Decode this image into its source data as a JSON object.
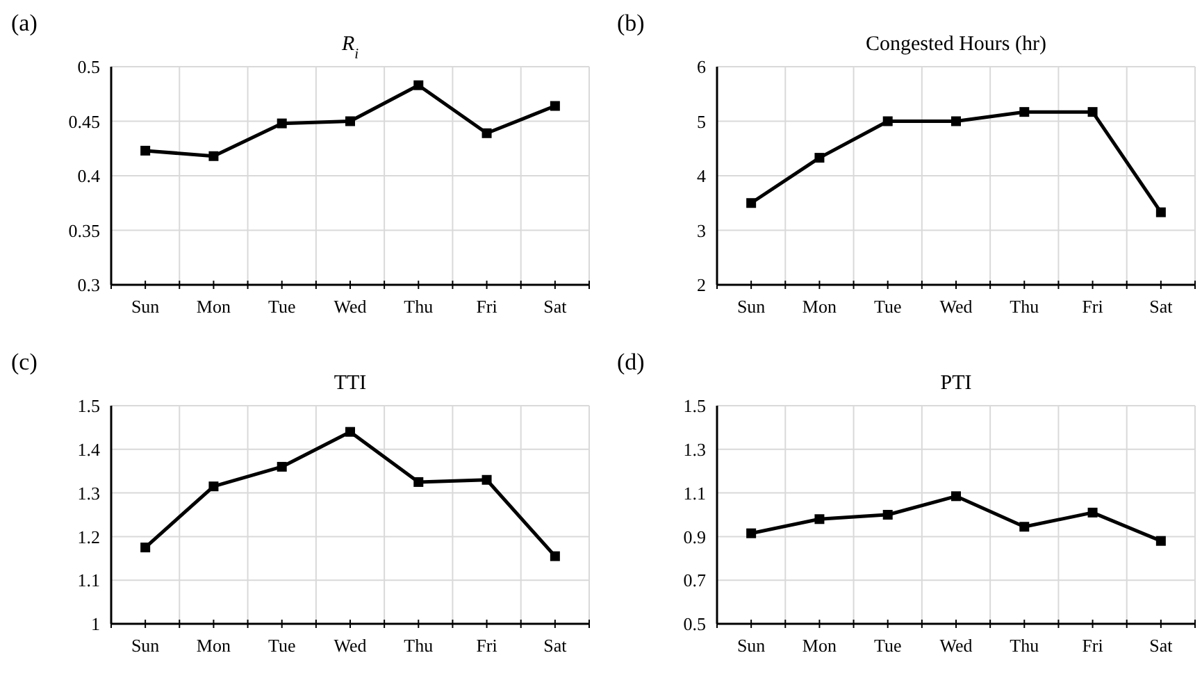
{
  "chart_data": [
    {
      "type": "line",
      "title": "R$_{i}$",
      "annotations": [
        "(a)"
      ],
      "categories": [
        "Sun",
        "Mon",
        "Tue",
        "Wed",
        "Thu",
        "Fri",
        "Sat"
      ],
      "series": [
        {
          "color": "#000000",
          "values": [
            0.423,
            0.418,
            0.448,
            0.45,
            0.483,
            0.439,
            0.464
          ]
        }
      ],
      "ylim": [
        0.3,
        0.5
      ],
      "yticks": [
        0.3,
        0.35,
        0.4,
        0.45,
        0.5
      ],
      "grid": true,
      "marker": "square",
      "line_style": "solid"
    },
    {
      "type": "line",
      "title": "Congested Hours (hr)",
      "annotations": [
        "(b)"
      ],
      "categories": [
        "Sun",
        "Mon",
        "Tue",
        "Wed",
        "Thu",
        "Fri",
        "Sat"
      ],
      "series": [
        {
          "color": "#000000",
          "values": [
            3.5,
            4.33,
            5.0,
            5.0,
            5.17,
            5.17,
            3.33
          ]
        }
      ],
      "ylim": [
        2,
        6
      ],
      "yticks": [
        2,
        3,
        4,
        5,
        6
      ],
      "grid": true,
      "marker": "square",
      "line_style": "solid"
    },
    {
      "type": "line",
      "title": "TTI",
      "annotations": [
        "(c)"
      ],
      "categories": [
        "Sun",
        "Mon",
        "Tue",
        "Wed",
        "Thu",
        "Fri",
        "Sat"
      ],
      "series": [
        {
          "color": "#000000",
          "values": [
            1.175,
            1.315,
            1.36,
            1.44,
            1.325,
            1.33,
            1.155
          ]
        }
      ],
      "ylim": [
        1,
        1.5
      ],
      "yticks": [
        1,
        1.1,
        1.2,
        1.3,
        1.4,
        1.5
      ],
      "grid": true,
      "marker": "square",
      "line_style": "solid"
    },
    {
      "type": "line",
      "title": "PTI",
      "annotations": [
        "(d)"
      ],
      "categories": [
        "Sun",
        "Mon",
        "Tue",
        "Wed",
        "Thu",
        "Fri",
        "Sat"
      ],
      "series": [
        {
          "color": "#000000",
          "values": [
            0.915,
            0.98,
            1.0,
            1.085,
            0.945,
            1.01,
            0.88
          ]
        }
      ],
      "ylim": [
        0.5,
        1.5
      ],
      "yticks": [
        0.5,
        0.7,
        0.9,
        1.1,
        1.3,
        1.5
      ],
      "grid": true,
      "marker": "square",
      "line_style": "solid"
    }
  ]
}
